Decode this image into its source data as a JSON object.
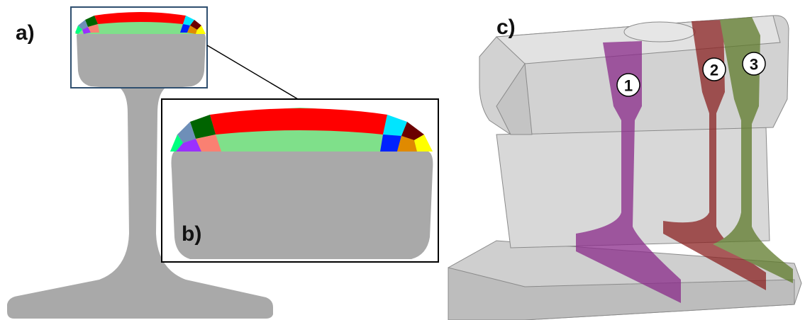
{
  "panel_labels": [
    "a)",
    "b)",
    "c)"
  ],
  "section_markers": [
    "1",
    "2",
    "3"
  ]
}
